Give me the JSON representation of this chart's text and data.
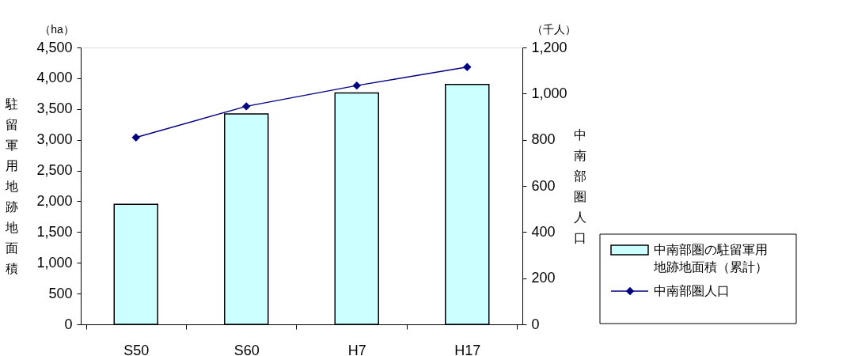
{
  "chart_data": {
    "type": "bar",
    "categories": [
      "S50",
      "S60",
      "H7",
      "H17"
    ],
    "series": [
      {
        "name": "中南部圏の駐留軍用地跡地面積（累計）",
        "color": "#ccffff",
        "values": [
          1950,
          3420,
          3760,
          3900
        ]
      },
      {
        "name": "中南部圏人口",
        "type": "line",
        "axis": "y2",
        "color": "#000080",
        "values": [
          810,
          945,
          1035,
          1115
        ],
        "marker": "diamond"
      }
    ],
    "ylabel": "駐留軍用地跡地面積",
    "y2label": "中南部圏人口",
    "ylim": [
      0,
      4500
    ],
    "yticks": [
      0,
      500,
      {
        "value": 1000,
        "label": "1,000"
      },
      {
        "value": 1500,
        "label": "1,500"
      },
      {
        "value": 2000,
        "label": "2,000"
      },
      {
        "value": 2500,
        "label": "2,500"
      },
      {
        "value": 3000,
        "label": "3,000"
      },
      {
        "value": 3500,
        "label": "3,500"
      },
      {
        "value": 4000,
        "label": "4,000"
      },
      {
        "value": 4500,
        "label": "4,500"
      }
    ],
    "y2lim": [
      0,
      1200
    ],
    "y2ticks": [
      0,
      200,
      400,
      600,
      800,
      {
        "value": 1000,
        "label": "1,000"
      },
      {
        "value": 1200,
        "label": "1,200"
      }
    ],
    "annotations": [
      "（ha）",
      "（千人）"
    ],
    "grid": false,
    "legend": "right"
  }
}
